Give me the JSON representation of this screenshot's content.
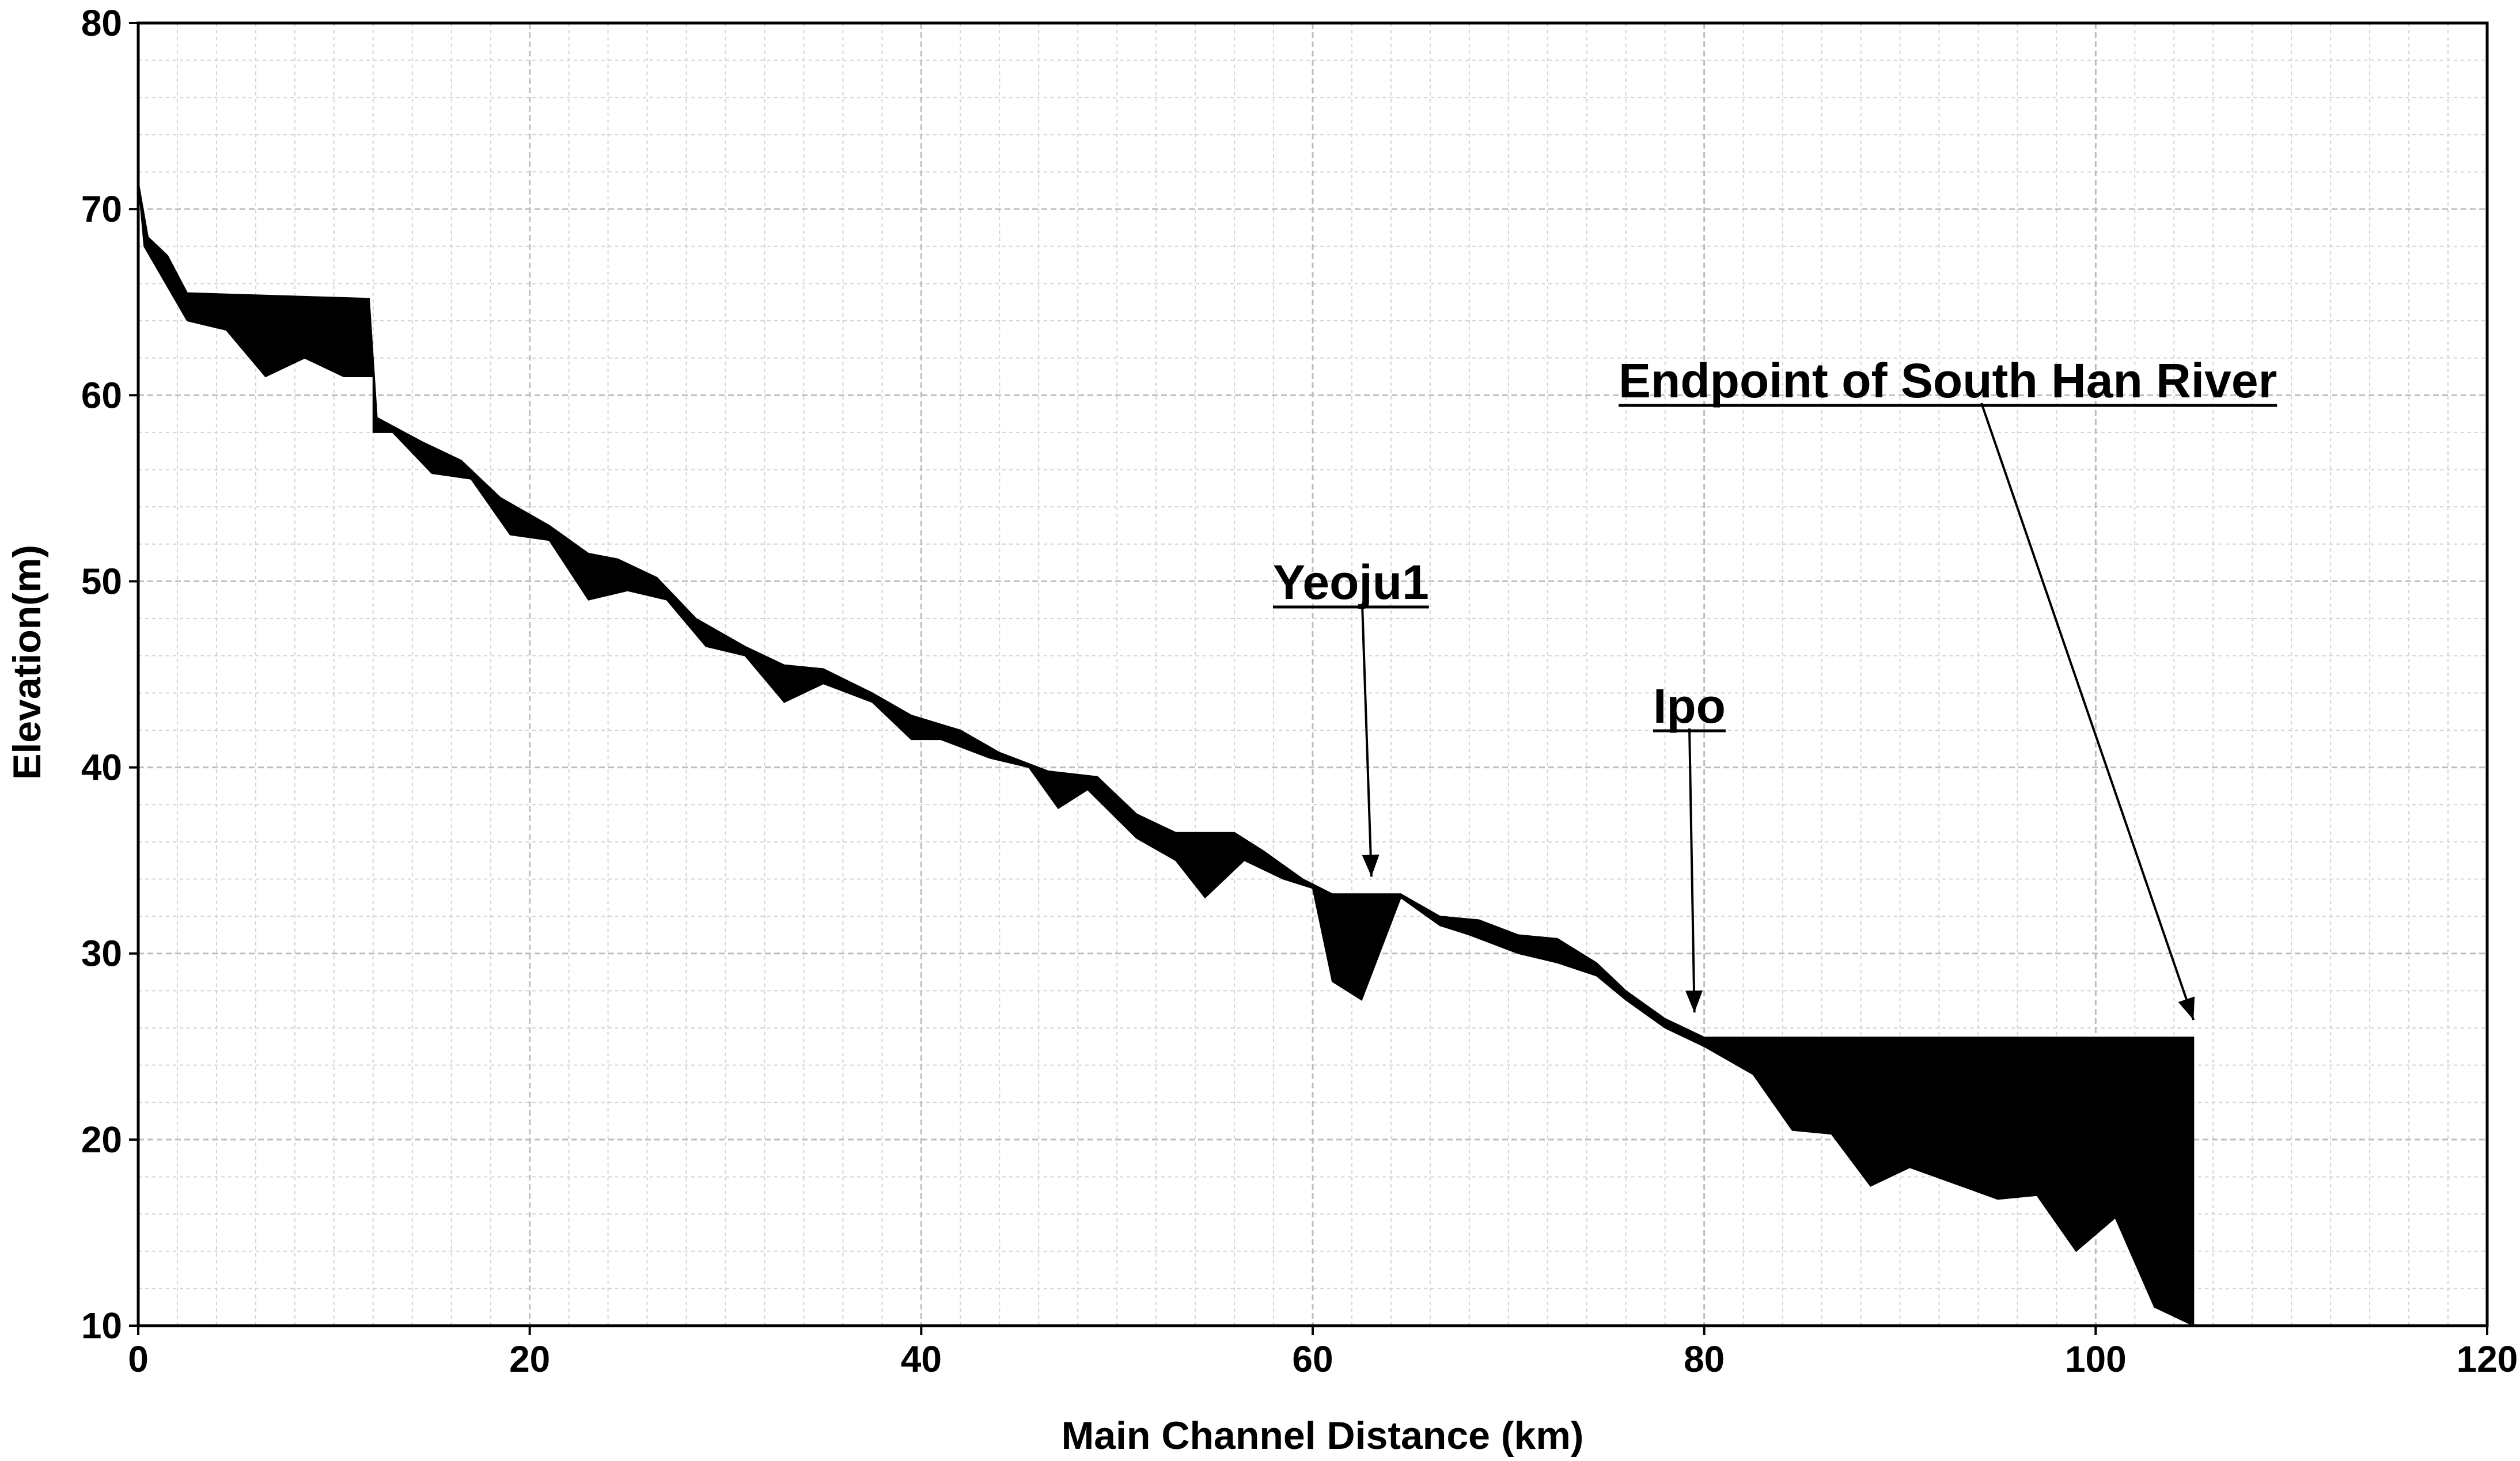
{
  "chart_data": {
    "type": "area",
    "title": "",
    "xlabel": "Main Channel Distance (km)",
    "ylabel": "Elevation(m)",
    "xlim": [
      0,
      120
    ],
    "ylim": [
      10,
      80
    ],
    "x_ticks": [
      0,
      20,
      40,
      60,
      80,
      100,
      120
    ],
    "y_ticks": [
      10,
      20,
      30,
      40,
      50,
      60,
      70,
      80
    ],
    "x_minor_step": 2,
    "y_minor_step": 2,
    "grid": true,
    "fill_color": "#000000",
    "water_surface": [
      [
        0,
        71.5
      ],
      [
        0.5,
        68.5
      ],
      [
        1.5,
        67.5
      ],
      [
        2.5,
        65.5
      ],
      [
        11.8,
        65.2
      ],
      [
        12.2,
        58.8
      ],
      [
        14.5,
        57.5
      ],
      [
        16.5,
        56.5
      ],
      [
        18.5,
        54.5
      ],
      [
        21,
        53
      ],
      [
        23,
        51.5
      ],
      [
        24.5,
        51.2
      ],
      [
        26.5,
        50.2
      ],
      [
        28.5,
        48
      ],
      [
        31,
        46.5
      ],
      [
        33,
        45.5
      ],
      [
        35,
        45.3
      ],
      [
        37.5,
        44
      ],
      [
        39.5,
        42.8
      ],
      [
        42,
        42
      ],
      [
        44,
        40.8
      ],
      [
        46.5,
        39.8
      ],
      [
        49,
        39.5
      ],
      [
        51,
        37.5
      ],
      [
        53,
        36.5
      ],
      [
        56,
        36.5
      ],
      [
        57.5,
        35.5
      ],
      [
        59.5,
        34
      ],
      [
        61,
        33.2
      ],
      [
        64.5,
        33.2
      ],
      [
        66.5,
        32
      ],
      [
        68.5,
        31.8
      ],
      [
        70.5,
        31
      ],
      [
        72.5,
        30.8
      ],
      [
        74.5,
        29.5
      ],
      [
        76,
        28
      ],
      [
        78,
        26.5
      ],
      [
        80,
        25.5
      ],
      [
        83,
        25.5
      ],
      [
        105,
        25.5
      ]
    ],
    "bed": [
      [
        0,
        71.5
      ],
      [
        0.3,
        68
      ],
      [
        2.5,
        64
      ],
      [
        4.5,
        63.5
      ],
      [
        6.5,
        61
      ],
      [
        8.5,
        62
      ],
      [
        10.5,
        61
      ],
      [
        12,
        61
      ],
      [
        12,
        58
      ],
      [
        13,
        58
      ],
      [
        15,
        55.8
      ],
      [
        17,
        55.5
      ],
      [
        19,
        52.5
      ],
      [
        21,
        52.2
      ],
      [
        23,
        49
      ],
      [
        25,
        49.5
      ],
      [
        27,
        49
      ],
      [
        29,
        46.5
      ],
      [
        31,
        46
      ],
      [
        33,
        43.5
      ],
      [
        35,
        44.5
      ],
      [
        37.5,
        43.5
      ],
      [
        39.5,
        41.5
      ],
      [
        41,
        41.5
      ],
      [
        43.5,
        40.5
      ],
      [
        45.5,
        40
      ],
      [
        47,
        37.8
      ],
      [
        48.5,
        38.8
      ],
      [
        51,
        36.2
      ],
      [
        53,
        35
      ],
      [
        54.5,
        33
      ],
      [
        56.5,
        35
      ],
      [
        58.5,
        34
      ],
      [
        60,
        33.5
      ],
      [
        61,
        28.5
      ],
      [
        62.5,
        27.5
      ],
      [
        64.5,
        33
      ],
      [
        66.5,
        31.5
      ],
      [
        68,
        31
      ],
      [
        70.5,
        30
      ],
      [
        72.5,
        29.5
      ],
      [
        74.5,
        28.8
      ],
      [
        76,
        27.5
      ],
      [
        78,
        26
      ],
      [
        80,
        25
      ],
      [
        82.5,
        23.5
      ],
      [
        84.5,
        20.5
      ],
      [
        86.5,
        20.3
      ],
      [
        88.5,
        17.5
      ],
      [
        90.5,
        18.5
      ],
      [
        95,
        16.8
      ],
      [
        97,
        17
      ],
      [
        99,
        14
      ],
      [
        101,
        15.8
      ],
      [
        103,
        11
      ],
      [
        105,
        10
      ]
    ],
    "annotations": [
      {
        "label": "Endpoint of South Han River",
        "x": 105,
        "y": 25.5
      },
      {
        "label": "Yeoju1",
        "x": 63,
        "y": 33.2
      },
      {
        "label": "Ipo",
        "x": 79.5,
        "y": 25.9
      }
    ]
  }
}
